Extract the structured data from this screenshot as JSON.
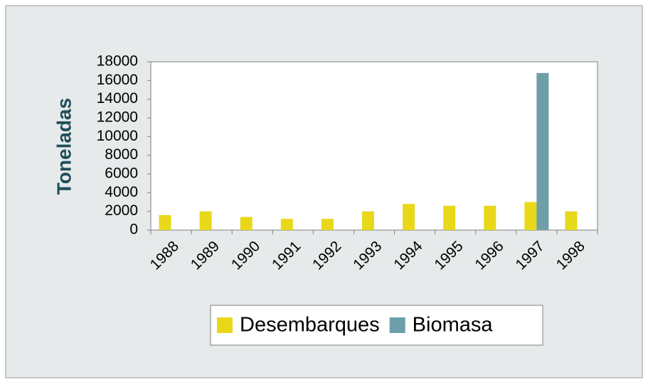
{
  "chart_data": {
    "type": "bar",
    "y_label": "Toneladas",
    "categories": [
      "1988",
      "1989",
      "1990",
      "1991",
      "1992",
      "1993",
      "1994",
      "1995",
      "1996",
      "1997",
      "1998"
    ],
    "series": [
      {
        "name": "Desembarques",
        "color": "#e8d81a",
        "values": [
          1600,
          2000,
          1400,
          1200,
          1200,
          2000,
          2800,
          2600,
          2600,
          3000,
          2000
        ]
      },
      {
        "name": "Biomasa",
        "color": "#6e9ea8",
        "values": [
          null,
          null,
          null,
          null,
          null,
          null,
          null,
          null,
          null,
          16800,
          null
        ]
      }
    ],
    "ylim": [
      0,
      18000
    ],
    "yticks": [
      0,
      2000,
      4000,
      6000,
      8000,
      10000,
      12000,
      14000,
      16000,
      18000
    ],
    "grid": false
  }
}
